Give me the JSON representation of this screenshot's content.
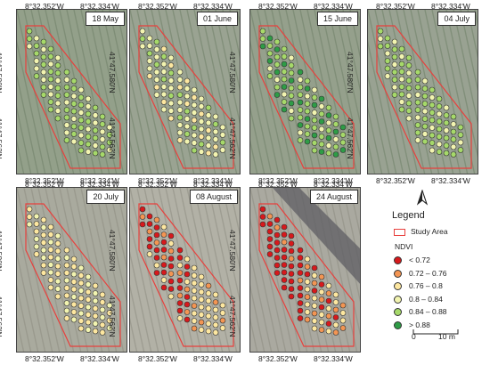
{
  "coords": {
    "x_left": "8°32.352'W",
    "x_right": "8°32.334'W",
    "y_top": "41°47.580'N",
    "y_bottom": "41°47.562'N"
  },
  "panels": [
    {
      "date": "18 May"
    },
    {
      "date": "01 June"
    },
    {
      "date": "15 June"
    },
    {
      "date": "04 July"
    },
    {
      "date": "20 July"
    },
    {
      "date": "08 August"
    },
    {
      "date": "24 August"
    }
  ],
  "legend": {
    "title": "Legend",
    "study_area": "Study Area",
    "ndvi_title": "NDVI",
    "classes": [
      {
        "label": "< 0.72",
        "color": "#d7191c"
      },
      {
        "label": "0.72 – 0.76",
        "color": "#f39553"
      },
      {
        "label": "0.76 – 0.8",
        "color": "#fde7a0"
      },
      {
        "label": "0.8 – 0.84",
        "color": "#f2f4b0"
      },
      {
        "label": "0.84 – 0.88",
        "color": "#a6d96a"
      },
      {
        "label": "> 0.88",
        "color": "#2e9c46"
      }
    ],
    "scale_zero": "0",
    "scale_end": "10 m"
  },
  "colors": {
    "study_area": "#e8403d"
  }
}
